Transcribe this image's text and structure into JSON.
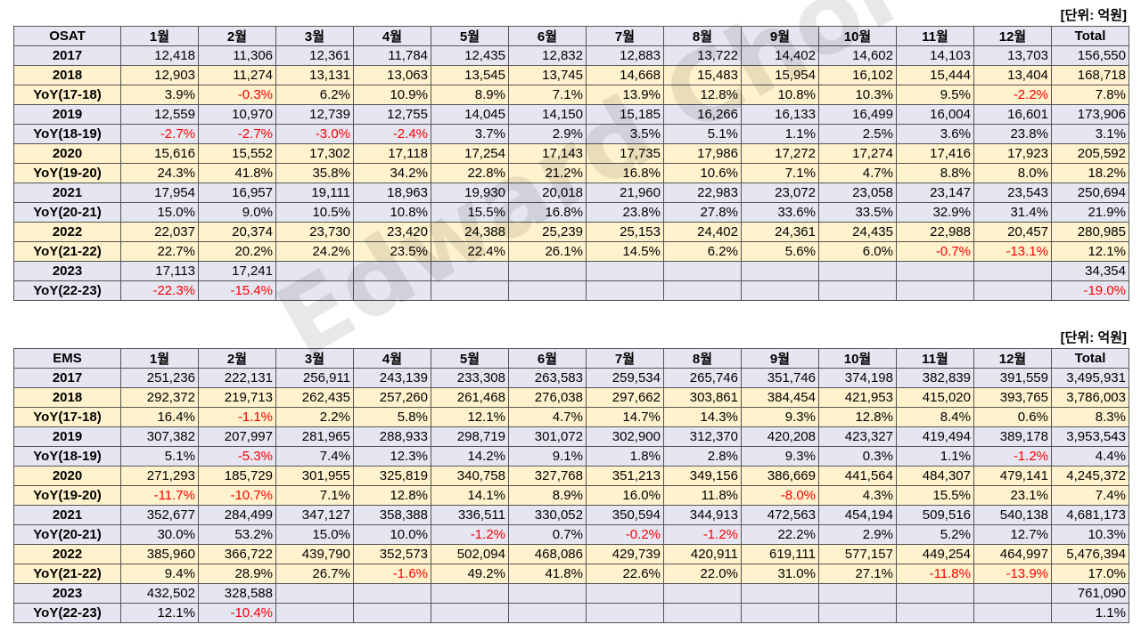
{
  "tables": [
    {
      "unit": "[단위: 억원]",
      "header": [
        "OSAT",
        "1월",
        "2월",
        "3월",
        "4월",
        "5월",
        "6월",
        "7월",
        "8월",
        "9월",
        "10월",
        "11월",
        "12월",
        "Total"
      ],
      "rows": [
        {
          "label": "2017",
          "cells": [
            "12,418",
            "11,306",
            "12,361",
            "11,784",
            "12,435",
            "12,832",
            "12,883",
            "13,722",
            "14,402",
            "14,602",
            "14,103",
            "13,703",
            "156,550"
          ]
        },
        {
          "label": "2018",
          "cells": [
            "12,903",
            "11,274",
            "13,131",
            "13,063",
            "13,545",
            "13,745",
            "14,668",
            "15,483",
            "15,954",
            "16,102",
            "15,444",
            "13,404",
            "168,718"
          ]
        },
        {
          "label": "YoY(17-18)",
          "cells": [
            "3.9%",
            "-0.3%",
            "6.2%",
            "10.9%",
            "8.9%",
            "7.1%",
            "13.9%",
            "12.8%",
            "10.8%",
            "10.3%",
            "9.5%",
            "-2.2%",
            "7.8%"
          ]
        },
        {
          "label": "2019",
          "cells": [
            "12,559",
            "10,970",
            "12,739",
            "12,755",
            "14,045",
            "14,150",
            "15,185",
            "16,266",
            "16,133",
            "16,499",
            "16,004",
            "16,601",
            "173,906"
          ]
        },
        {
          "label": "YoY(18-19)",
          "cells": [
            "-2.7%",
            "-2.7%",
            "-3.0%",
            "-2.4%",
            "3.7%",
            "2.9%",
            "3.5%",
            "5.1%",
            "1.1%",
            "2.5%",
            "3.6%",
            "23.8%",
            "3.1%"
          ]
        },
        {
          "label": "2020",
          "cells": [
            "15,616",
            "15,552",
            "17,302",
            "17,118",
            "17,254",
            "17,143",
            "17,735",
            "17,986",
            "17,272",
            "17,274",
            "17,416",
            "17,923",
            "205,592"
          ]
        },
        {
          "label": "YoY(19-20)",
          "cells": [
            "24.3%",
            "41.8%",
            "35.8%",
            "34.2%",
            "22.8%",
            "21.2%",
            "16.8%",
            "10.6%",
            "7.1%",
            "4.7%",
            "8.8%",
            "8.0%",
            "18.2%"
          ]
        },
        {
          "label": "2021",
          "cells": [
            "17,954",
            "16,957",
            "19,111",
            "18,963",
            "19,930",
            "20,018",
            "21,960",
            "22,983",
            "23,072",
            "23,058",
            "23,147",
            "23,543",
            "250,694"
          ]
        },
        {
          "label": "YoY(20-21)",
          "cells": [
            "15.0%",
            "9.0%",
            "10.5%",
            "10.8%",
            "15.5%",
            "16.8%",
            "23.8%",
            "27.8%",
            "33.6%",
            "33.5%",
            "32.9%",
            "31.4%",
            "21.9%"
          ]
        },
        {
          "label": "2022",
          "cells": [
            "22,037",
            "20,374",
            "23,730",
            "23,420",
            "24,388",
            "25,239",
            "25,153",
            "24,402",
            "24,361",
            "24,435",
            "22,988",
            "20,457",
            "280,985"
          ]
        },
        {
          "label": "YoY(21-22)",
          "cells": [
            "22.7%",
            "20.2%",
            "24.2%",
            "23.5%",
            "22.4%",
            "26.1%",
            "14.5%",
            "6.2%",
            "5.6%",
            "6.0%",
            "-0.7%",
            "-13.1%",
            "12.1%"
          ]
        },
        {
          "label": "2023",
          "cells": [
            "17,113",
            "17,241",
            "",
            "",
            "",
            "",
            "",
            "",
            "",
            "",
            "",
            "",
            "34,354"
          ]
        },
        {
          "label": "YoY(22-23)",
          "cells": [
            "-22.3%",
            "-15.4%",
            "",
            "",
            "",
            "",
            "",
            "",
            "",
            "",
            "",
            "",
            "-19.0%"
          ]
        }
      ]
    },
    {
      "unit": "[단위: 억원]",
      "header": [
        "EMS",
        "1월",
        "2월",
        "3월",
        "4월",
        "5월",
        "6월",
        "7월",
        "8월",
        "9월",
        "10월",
        "11월",
        "12월",
        "Total"
      ],
      "rows": [
        {
          "label": "2017",
          "cells": [
            "251,236",
            "222,131",
            "256,911",
            "243,139",
            "233,308",
            "263,583",
            "259,534",
            "265,746",
            "351,746",
            "374,198",
            "382,839",
            "391,559",
            "3,495,931"
          ]
        },
        {
          "label": "2018",
          "cells": [
            "292,372",
            "219,713",
            "262,435",
            "257,260",
            "261,468",
            "276,038",
            "297,662",
            "303,861",
            "384,454",
            "421,953",
            "415,020",
            "393,765",
            "3,786,003"
          ]
        },
        {
          "label": "YoY(17-18)",
          "cells": [
            "16.4%",
            "-1.1%",
            "2.2%",
            "5.8%",
            "12.1%",
            "4.7%",
            "14.7%",
            "14.3%",
            "9.3%",
            "12.8%",
            "8.4%",
            "0.6%",
            "8.3%"
          ]
        },
        {
          "label": "2019",
          "cells": [
            "307,382",
            "207,997",
            "281,965",
            "288,933",
            "298,719",
            "301,072",
            "302,900",
            "312,370",
            "420,208",
            "423,327",
            "419,494",
            "389,178",
            "3,953,543"
          ]
        },
        {
          "label": "YoY(18-19)",
          "cells": [
            "5.1%",
            "-5.3%",
            "7.4%",
            "12.3%",
            "14.2%",
            "9.1%",
            "1.8%",
            "2.8%",
            "9.3%",
            "0.3%",
            "1.1%",
            "-1.2%",
            "4.4%"
          ]
        },
        {
          "label": "2020",
          "cells": [
            "271,293",
            "185,729",
            "301,955",
            "325,819",
            "340,758",
            "327,768",
            "351,213",
            "349,156",
            "386,669",
            "441,564",
            "484,307",
            "479,141",
            "4,245,372"
          ]
        },
        {
          "label": "YoY(19-20)",
          "cells": [
            "-11.7%",
            "-10.7%",
            "7.1%",
            "12.8%",
            "14.1%",
            "8.9%",
            "16.0%",
            "11.8%",
            "-8.0%",
            "4.3%",
            "15.5%",
            "23.1%",
            "7.4%"
          ]
        },
        {
          "label": "2021",
          "cells": [
            "352,677",
            "284,499",
            "347,127",
            "358,388",
            "336,511",
            "330,052",
            "350,594",
            "344,913",
            "472,563",
            "454,194",
            "509,516",
            "540,138",
            "4,681,173"
          ]
        },
        {
          "label": "YoY(20-21)",
          "cells": [
            "30.0%",
            "53.2%",
            "15.0%",
            "10.0%",
            "-1.2%",
            "0.7%",
            "-0.2%",
            "-1.2%",
            "22.2%",
            "2.9%",
            "5.2%",
            "12.7%",
            "10.3%"
          ]
        },
        {
          "label": "2022",
          "cells": [
            "385,960",
            "366,722",
            "439,790",
            "352,573",
            "502,094",
            "468,086",
            "429,739",
            "420,911",
            "619,111",
            "577,157",
            "449,254",
            "464,997",
            "5,476,394"
          ]
        },
        {
          "label": "YoY(21-22)",
          "cells": [
            "9.4%",
            "28.9%",
            "26.7%",
            "-1.6%",
            "49.2%",
            "41.8%",
            "22.6%",
            "22.0%",
            "31.0%",
            "27.1%",
            "-11.8%",
            "-13.9%",
            "17.0%"
          ]
        },
        {
          "label": "2023",
          "cells": [
            "432,502",
            "328,588",
            "",
            "",
            "",
            "",
            "",
            "",
            "",
            "",
            "",
            "",
            "761,090"
          ]
        },
        {
          "label": "YoY(22-23)",
          "cells": [
            "12.1%",
            "-10.4%",
            "",
            "",
            "",
            "",
            "",
            "",
            "",
            "",
            "",
            "",
            "1.1%"
          ]
        }
      ]
    }
  ],
  "row_bands": [
    "blue",
    "yellow",
    "yellow",
    "blue",
    "blue",
    "yellow",
    "yellow",
    "blue",
    "blue",
    "yellow",
    "yellow",
    "blue",
    "blue"
  ],
  "watermark": "Edward Choi",
  "colors": {
    "negative": "#ff0000",
    "band_blue": "#e6e6f2",
    "band_yellow": "#fff2cc"
  }
}
